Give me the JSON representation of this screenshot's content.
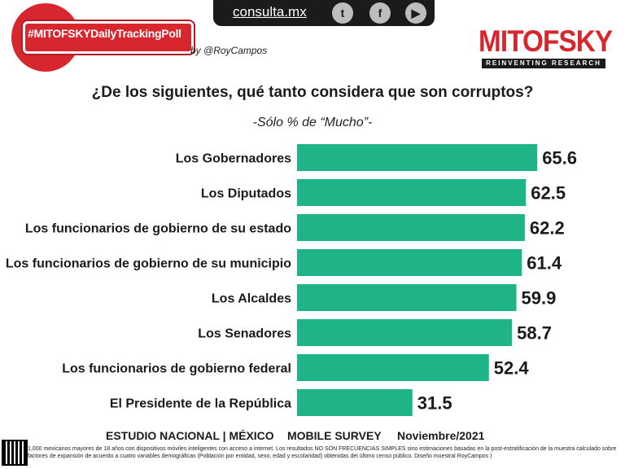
{
  "header": {
    "hashtag": "#MITOFSKYDailyTrackingPoll",
    "byline": "by @RoyCampos",
    "site": "consulta.mx",
    "social_icons": [
      "twitter-icon",
      "facebook-icon",
      "youtube-icon"
    ],
    "logo_name": "MITOFSKY",
    "logo_tagline": "REINVENTING RESEARCH"
  },
  "chart_data": {
    "type": "bar",
    "orientation": "horizontal",
    "title": "¿De los siguientes, qué tanto considera que son corruptos?",
    "subtitle": "-Sólo % de “Mucho”-",
    "categories": [
      "Los Gobernadores",
      "Los Diputados",
      "Los funcionarios de gobierno de su estado",
      "Los funcionarios de gobierno de su municipio",
      "Los Alcaldes",
      "Los Senadores",
      "Los funcionarios de gobierno federal",
      "El Presidente de la República"
    ],
    "values": [
      65.6,
      62.5,
      62.2,
      61.4,
      59.9,
      58.7,
      52.4,
      31.5
    ],
    "bar_color": "#1fb388",
    "xlim": [
      0,
      100
    ]
  },
  "footer": {
    "study": "ESTUDIO NACIONAL | MÉXICO",
    "method": "MOBILE SURVEY",
    "date": "Noviembre/2021",
    "note": "1,000 mexicanos mayores de 18 años con dispositivos móviles inteligentes con acceso a internet. Los resultados NO SON FRECUENCIAS SIMPLES sino estimaciones basadas en la post-estratificación de la muestra calculado sobre factores de expansión de acuerdo a cuatro variables demográficas (Población por entidad, sexo, edad y escolaridad) obtenidas del último censo público. Diseño muestral RoyCampos )"
  }
}
